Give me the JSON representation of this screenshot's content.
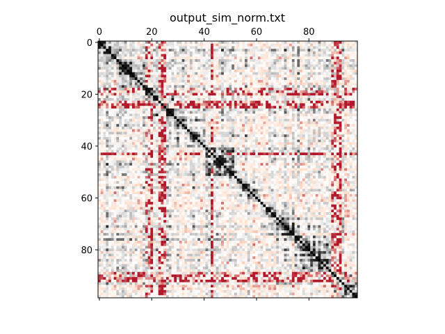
{
  "chart_data": {
    "type": "heatmap",
    "title": "output_sim_norm.txt",
    "xlabel": "",
    "ylabel": "",
    "size": 99,
    "x_ticks": [
      0,
      20,
      40,
      60,
      80
    ],
    "y_ticks": [
      0,
      20,
      40,
      60,
      80
    ],
    "x_axis_position": "top",
    "colormap": "RdGy",
    "diagonal_value": 1.0,
    "grid": false,
    "block_ranges": [
      [
        0,
        7
      ],
      [
        8,
        17
      ],
      [
        18,
        28
      ],
      [
        29,
        40
      ],
      [
        41,
        52
      ],
      [
        53,
        62
      ],
      [
        63,
        74
      ],
      [
        75,
        88
      ],
      [
        89,
        98
      ]
    ],
    "highlight_rows": [
      18,
      19,
      24,
      25,
      43,
      90,
      91,
      92
    ],
    "highlight_cols": [
      19,
      20,
      23,
      24,
      43,
      89,
      90,
      91,
      92
    ],
    "colors": {
      "low": "#b2182b",
      "mid": "#ffffff",
      "high": "#000000"
    }
  }
}
